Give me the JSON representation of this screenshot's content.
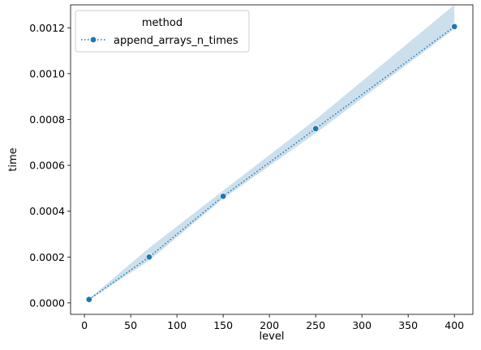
{
  "chart_data": {
    "type": "line",
    "xlabel": "level",
    "ylabel": "time",
    "xlim": [
      -15,
      420
    ],
    "ylim": [
      -5e-05,
      0.0013
    ],
    "x_ticks": [
      0,
      50,
      100,
      150,
      200,
      250,
      300,
      350,
      400
    ],
    "x_tick_labels": [
      "0",
      "50",
      "100",
      "150",
      "200",
      "250",
      "300",
      "350",
      "400"
    ],
    "y_ticks": [
      0,
      0.0002,
      0.0004,
      0.0006,
      0.0008,
      0.001,
      0.0012
    ],
    "y_tick_labels": [
      "0.0000",
      "0.0002",
      "0.0004",
      "0.0006",
      "0.0008",
      "0.0010",
      "0.0012"
    ],
    "grid": false,
    "legend": {
      "title": "method",
      "position": "top-left"
    },
    "series": [
      {
        "name": "append_arrays_n_times",
        "color": "#1f77b4",
        "band_color": "#b7d1e6",
        "line_style": "dotted",
        "marker": "circle",
        "x": [
          5,
          70,
          150,
          250,
          400
        ],
        "y": [
          1.5e-05,
          0.0002,
          0.000465,
          0.00076,
          0.001205
        ],
        "ci_lower": [
          1.2e-05,
          0.000185,
          0.000455,
          0.00074,
          0.001195
        ],
        "ci_upper": [
          1.8e-05,
          0.00024,
          0.00049,
          0.0008,
          0.0013
        ]
      }
    ]
  }
}
